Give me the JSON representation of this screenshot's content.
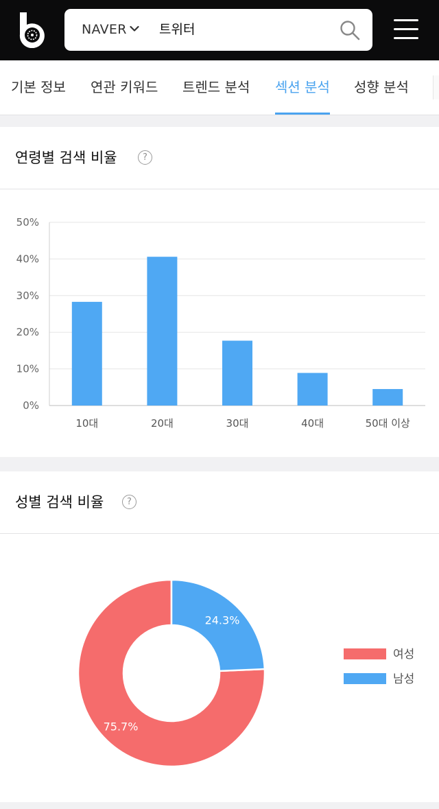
{
  "header": {
    "logo_icon": "brand-b-logo-icon",
    "search": {
      "engine": "NAVER",
      "query": "트위터"
    },
    "icons": {
      "engine_caret": "chevron-down-icon",
      "search": "search-icon",
      "menu": "hamburger-menu-icon"
    }
  },
  "tabs": [
    {
      "label": "기본 정보",
      "active": false
    },
    {
      "label": "연관 키워드",
      "active": false
    },
    {
      "label": "트렌드 분석",
      "active": false
    },
    {
      "label": "섹션 분석",
      "active": true
    },
    {
      "label": "성향 분석",
      "active": false
    }
  ],
  "age_section": {
    "title": "연령별 검색 비율",
    "help_icon": "question-circle-icon",
    "help_glyph": "?"
  },
  "gender_section": {
    "title": "성별 검색 비율",
    "help_icon": "question-circle-icon",
    "help_glyph": "?"
  },
  "colors": {
    "accent": "#4aa3ef",
    "bar": "#4fa8f3",
    "female": "#f56c6c",
    "male": "#4fa8f3"
  },
  "chart_data": [
    {
      "type": "bar",
      "categories": [
        "10대",
        "20대",
        "30대",
        "40대",
        "50대 이상"
      ],
      "values": [
        28.3,
        40.6,
        17.7,
        8.9,
        4.5
      ],
      "yticks": [
        "0%",
        "10%",
        "20%",
        "30%",
        "40%",
        "50%"
      ],
      "ylim": [
        0,
        50
      ],
      "grid": true
    },
    {
      "type": "pie",
      "donut": true,
      "labels": [
        "여성",
        "남성"
      ],
      "values": [
        75.7,
        24.3
      ],
      "value_labels": [
        "75.7%",
        "24.3%"
      ],
      "legend": "right"
    }
  ]
}
